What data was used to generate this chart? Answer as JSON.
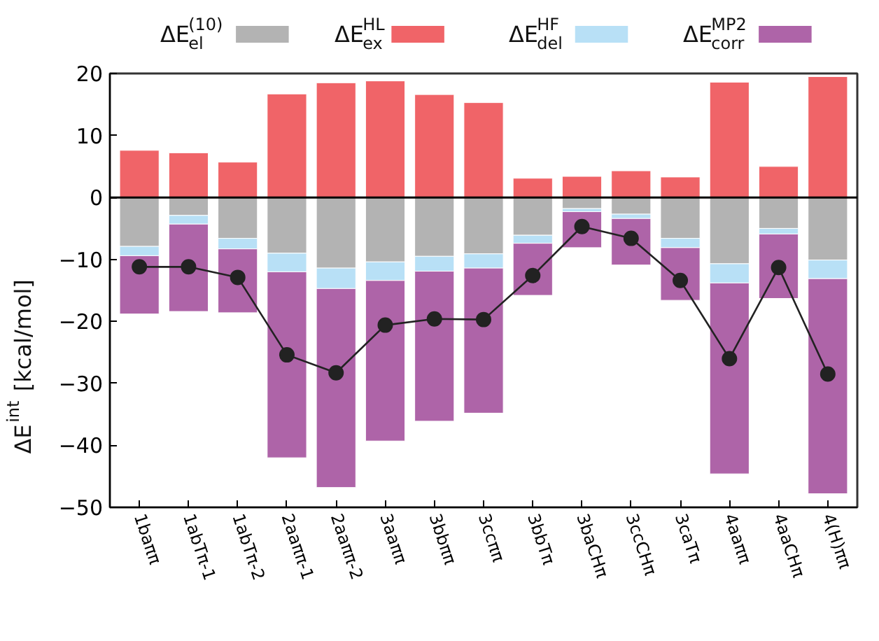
{
  "chart_data": {
    "type": "bar",
    "stacked": true,
    "ylabel": "ΔE$^{int}$ [kcal/mol]",
    "categories": [
      "1baππ",
      "1abTπ-1",
      "1abTπ-2",
      "2aaππ-1",
      "2aaππ-2",
      "3aaππ",
      "3bbππ",
      "3ccππ",
      "3bbTπ",
      "3baCHπ",
      "3ccCHπ",
      "3caTπ",
      "4aaππ",
      "4aaCHπ",
      "4(H)ππ"
    ],
    "ylim": [
      -50,
      20
    ],
    "yticks": [
      -50,
      -40,
      -30,
      -20,
      -10,
      0,
      10,
      20
    ],
    "grid": false,
    "legend": "top",
    "ref_lines": [
      {
        "axis": "y",
        "value": 0,
        "color": "#000000"
      }
    ],
    "series": [
      {
        "name": "ΔE$^{(10)}$$_{el}$",
        "color": "#b3b3b3",
        "values": [
          -7.9,
          -2.9,
          -6.6,
          -9.0,
          -11.4,
          -10.4,
          -9.5,
          -9.1,
          -6.1,
          -1.8,
          -2.7,
          -6.6,
          -10.7,
          -5.0,
          -10.1
        ]
      },
      {
        "name": "ΔE$^{HL}$$_{ex}$",
        "color": "#f06468",
        "values": [
          7.6,
          7.2,
          5.7,
          16.7,
          18.5,
          18.8,
          16.6,
          15.3,
          3.1,
          3.4,
          4.3,
          3.3,
          18.6,
          5.0,
          19.5
        ]
      },
      {
        "name": "ΔE$^{HF}$$_{del}$",
        "color": "#b8e0f6",
        "values": [
          -1.5,
          -1.4,
          -1.7,
          -3.0,
          -3.3,
          -3.0,
          -2.4,
          -2.3,
          -1.3,
          -0.5,
          -0.7,
          -1.5,
          -3.1,
          -0.9,
          -3.0
        ]
      },
      {
        "name": "ΔE$^{MP2}$$_{corr}$",
        "color": "#ae64a8",
        "values": [
          -9.4,
          -14.1,
          -10.3,
          -30.0,
          -32.1,
          -25.9,
          -24.2,
          -23.4,
          -8.4,
          -5.8,
          -7.5,
          -8.5,
          -30.8,
          -10.4,
          -34.7
        ]
      },
      {
        "type": "line",
        "color": "#222222",
        "marker": "circle",
        "line_style": "solid",
        "values": [
          -11.2,
          -11.2,
          -12.9,
          -25.4,
          -28.3,
          -20.6,
          -19.6,
          -19.7,
          -12.6,
          -4.7,
          -6.6,
          -13.4,
          -26.0,
          -11.3,
          -28.5
        ]
      }
    ]
  }
}
